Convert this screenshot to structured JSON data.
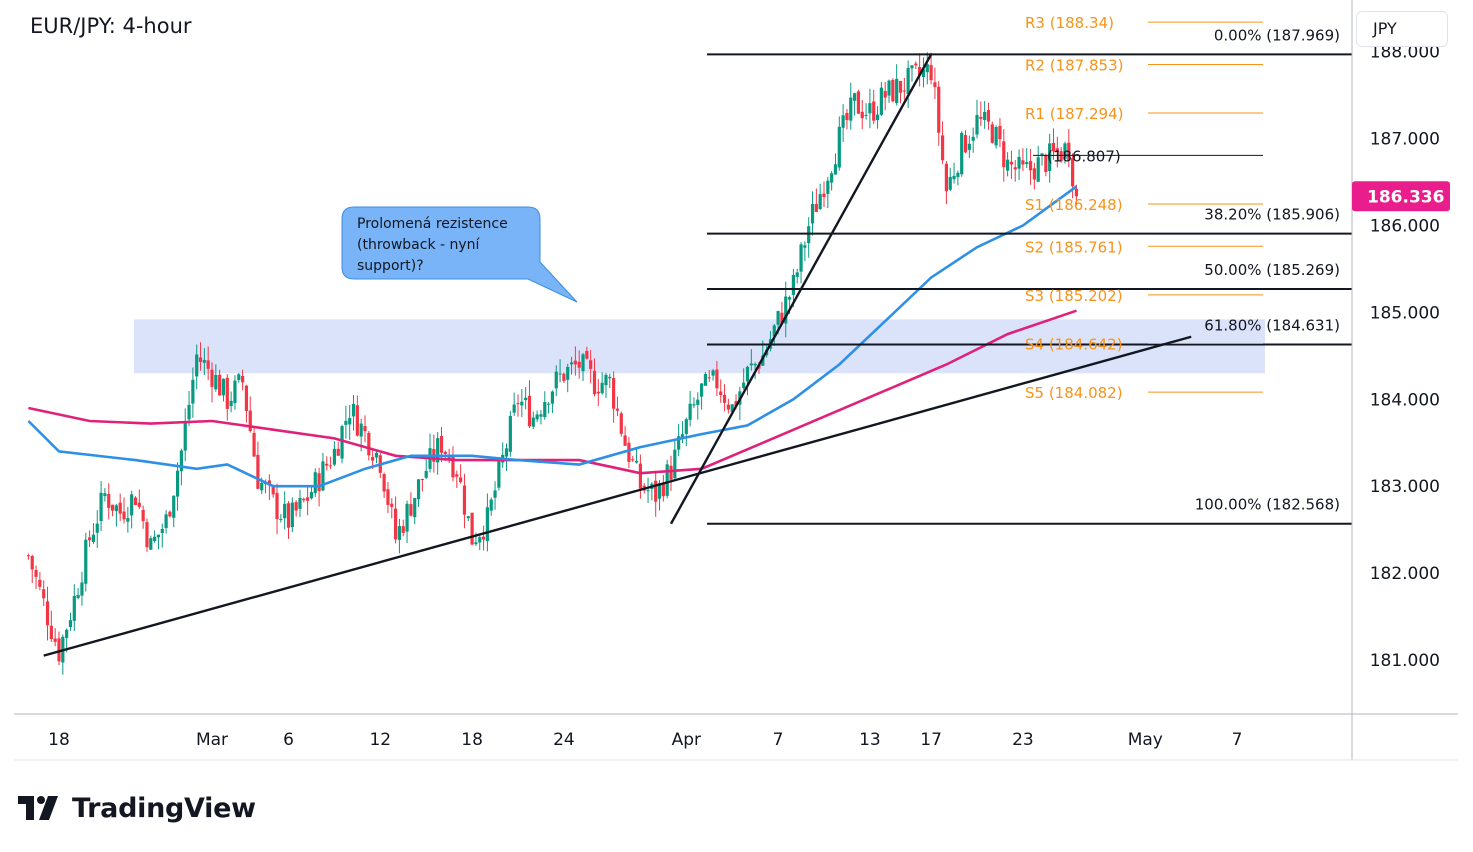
{
  "header": {
    "title": "EUR/JPY: 4-hour",
    "currency": "JPY"
  },
  "brand": {
    "name": "TradingView",
    "logo": "tradingview-logo-icon"
  },
  "annotation": {
    "text_lines": [
      "Prolomená rezistence",
      "(throwback - nyní",
      "support)?"
    ],
    "color": "#78b4f7"
  },
  "colors": {
    "up_candle": "#089981",
    "down_candle": "#f23645",
    "sma_fast": "#2e8fe6",
    "sma_slow": "#e0217a",
    "pivot": "#f7931a",
    "last_price_bg": "#e91e8c",
    "zone": "#dbe3fb",
    "line": "#131722"
  },
  "chart_data": {
    "type": "candlestick",
    "title": "EUR/JPY: 4-hour",
    "symbol": "EUR/JPY",
    "timeframe": "4-hour",
    "ylim": [
      180.4,
      188.5
    ],
    "y_ticks": [
      {
        "value": 181,
        "label": "181.000"
      },
      {
        "value": 182,
        "label": "182.000"
      },
      {
        "value": 183,
        "label": "183.000"
      },
      {
        "value": 184,
        "label": "184.000"
      },
      {
        "value": 185,
        "label": "185.000"
      },
      {
        "value": 186,
        "label": "186.000"
      },
      {
        "value": 187,
        "label": "187.000"
      },
      {
        "value": 188,
        "label": "188.000"
      }
    ],
    "x_ticks": [
      {
        "day": 0,
        "label": "18"
      },
      {
        "day": 10,
        "label": "Mar"
      },
      {
        "day": 15,
        "label": "6"
      },
      {
        "day": 21,
        "label": "12"
      },
      {
        "day": 27,
        "label": "18"
      },
      {
        "day": 33,
        "label": "24"
      },
      {
        "day": 41,
        "label": "Apr"
      },
      {
        "day": 47,
        "label": "7"
      },
      {
        "day": 53,
        "label": "13"
      },
      {
        "day": 57,
        "label": "17"
      },
      {
        "day": 63,
        "label": "23"
      },
      {
        "day": 71,
        "label": "May"
      },
      {
        "day": 77,
        "label": "7"
      }
    ],
    "last_price": {
      "value": 186.336,
      "label": "186.336"
    },
    "resistance_zone": {
      "from": 184.3,
      "to": 184.92
    },
    "fibonacci": [
      {
        "level": 187.969,
        "label": "0.00% (187.969)"
      },
      {
        "level": 185.906,
        "label": "38.20% (185.906)"
      },
      {
        "level": 185.269,
        "label": "50.00% (185.269)"
      },
      {
        "level": 184.631,
        "label": "61.80% (184.631)"
      },
      {
        "level": 182.568,
        "label": "100.00% (182.568)"
      }
    ],
    "pivots": [
      {
        "level": 188.34,
        "label": "R3 (188.34)"
      },
      {
        "level": 187.853,
        "label": "R2 (187.853)"
      },
      {
        "level": 187.294,
        "label": "R1 (187.294)"
      },
      {
        "level": 186.807,
        "label": "(186.807)"
      },
      {
        "level": 186.248,
        "label": "S1 (186.248)"
      },
      {
        "level": 185.761,
        "label": "S2 (185.761)"
      },
      {
        "level": 185.202,
        "label": "S3 (185.202)"
      },
      {
        "level": 184.642,
        "label": "S4 (184.642)"
      },
      {
        "level": 184.082,
        "label": "S5 (184.082)"
      }
    ],
    "trendlines": [
      {
        "name": "support-trendline",
        "from": {
          "day": -1,
          "price": 181.05
        },
        "to": {
          "day": 74,
          "price": 184.72
        }
      },
      {
        "name": "impulse-line",
        "from": {
          "day": 40,
          "price": 182.568
        },
        "to": {
          "day": 57,
          "price": 187.969
        }
      }
    ],
    "series": [
      {
        "name": "close",
        "points": [
          {
            "day": -2,
            "price": 182.2
          },
          {
            "day": 0,
            "price": 181.1
          },
          {
            "day": 1,
            "price": 181.7
          },
          {
            "day": 2,
            "price": 182.4
          },
          {
            "day": 3,
            "price": 182.9
          },
          {
            "day": 4,
            "price": 182.7
          },
          {
            "day": 5,
            "price": 182.9
          },
          {
            "day": 6,
            "price": 182.3
          },
          {
            "day": 7,
            "price": 182.6
          },
          {
            "day": 8,
            "price": 183.4
          },
          {
            "day": 9,
            "price": 184.5
          },
          {
            "day": 10,
            "price": 184.3
          },
          {
            "day": 11,
            "price": 184.0
          },
          {
            "day": 12,
            "price": 184.2
          },
          {
            "day": 13,
            "price": 183.1
          },
          {
            "day": 14,
            "price": 182.8
          },
          {
            "day": 15,
            "price": 182.6
          },
          {
            "day": 16,
            "price": 182.8
          },
          {
            "day": 17,
            "price": 183.1
          },
          {
            "day": 18,
            "price": 183.4
          },
          {
            "day": 19,
            "price": 183.9
          },
          {
            "day": 20,
            "price": 183.6
          },
          {
            "day": 21,
            "price": 183.3
          },
          {
            "day": 22,
            "price": 182.4
          },
          {
            "day": 23,
            "price": 182.8
          },
          {
            "day": 24,
            "price": 183.2
          },
          {
            "day": 25,
            "price": 183.5
          },
          {
            "day": 26,
            "price": 183.2
          },
          {
            "day": 27,
            "price": 182.4
          },
          {
            "day": 28,
            "price": 182.6
          },
          {
            "day": 29,
            "price": 183.3
          },
          {
            "day": 30,
            "price": 184.0
          },
          {
            "day": 31,
            "price": 183.8
          },
          {
            "day": 32,
            "price": 184.1
          },
          {
            "day": 33,
            "price": 184.3
          },
          {
            "day": 34,
            "price": 184.4
          },
          {
            "day": 35,
            "price": 184.2
          },
          {
            "day": 36,
            "price": 184.2
          },
          {
            "day": 37,
            "price": 183.5
          },
          {
            "day": 38,
            "price": 183.0
          },
          {
            "day": 39,
            "price": 182.9
          },
          {
            "day": 40,
            "price": 183.2
          },
          {
            "day": 41,
            "price": 183.7
          },
          {
            "day": 42,
            "price": 184.1
          },
          {
            "day": 43,
            "price": 184.2
          },
          {
            "day": 44,
            "price": 183.9
          },
          {
            "day": 45,
            "price": 184.3
          },
          {
            "day": 46,
            "price": 184.5
          },
          {
            "day": 47,
            "price": 184.9
          },
          {
            "day": 48,
            "price": 185.3
          },
          {
            "day": 49,
            "price": 186.0
          },
          {
            "day": 50,
            "price": 186.5
          },
          {
            "day": 51,
            "price": 187.0
          },
          {
            "day": 52,
            "price": 187.4
          },
          {
            "day": 53,
            "price": 187.3
          },
          {
            "day": 54,
            "price": 187.5
          },
          {
            "day": 55,
            "price": 187.6
          },
          {
            "day": 56,
            "price": 187.7
          },
          {
            "day": 57,
            "price": 187.8
          },
          {
            "day": 58,
            "price": 186.4
          },
          {
            "day": 59,
            "price": 186.9
          },
          {
            "day": 60,
            "price": 187.2
          },
          {
            "day": 61,
            "price": 187.1
          },
          {
            "day": 62,
            "price": 186.7
          },
          {
            "day": 63,
            "price": 186.6
          },
          {
            "day": 64,
            "price": 186.7
          },
          {
            "day": 65,
            "price": 186.8
          },
          {
            "day": 66,
            "price": 186.9
          },
          {
            "day": 66.5,
            "price": 186.336
          }
        ]
      },
      {
        "name": "moving-average-fast",
        "points": [
          {
            "day": -2,
            "price": 183.75
          },
          {
            "day": 0,
            "price": 183.4
          },
          {
            "day": 5,
            "price": 183.3
          },
          {
            "day": 9,
            "price": 183.2
          },
          {
            "day": 11,
            "price": 183.25
          },
          {
            "day": 14,
            "price": 183.0
          },
          {
            "day": 17,
            "price": 183.0
          },
          {
            "day": 20,
            "price": 183.2
          },
          {
            "day": 23,
            "price": 183.35
          },
          {
            "day": 27,
            "price": 183.35
          },
          {
            "day": 30,
            "price": 183.3
          },
          {
            "day": 34,
            "price": 183.25
          },
          {
            "day": 38,
            "price": 183.45
          },
          {
            "day": 42,
            "price": 183.6
          },
          {
            "day": 45,
            "price": 183.7
          },
          {
            "day": 48,
            "price": 184.0
          },
          {
            "day": 51,
            "price": 184.4
          },
          {
            "day": 54,
            "price": 184.9
          },
          {
            "day": 57,
            "price": 185.4
          },
          {
            "day": 60,
            "price": 185.75
          },
          {
            "day": 63,
            "price": 186.0
          },
          {
            "day": 66.5,
            "price": 186.45
          }
        ]
      },
      {
        "name": "moving-average-slow",
        "points": [
          {
            "day": -2,
            "price": 183.9
          },
          {
            "day": 2,
            "price": 183.75
          },
          {
            "day": 6,
            "price": 183.72
          },
          {
            "day": 10,
            "price": 183.75
          },
          {
            "day": 14,
            "price": 183.65
          },
          {
            "day": 18,
            "price": 183.55
          },
          {
            "day": 22,
            "price": 183.35
          },
          {
            "day": 26,
            "price": 183.3
          },
          {
            "day": 30,
            "price": 183.3
          },
          {
            "day": 34,
            "price": 183.3
          },
          {
            "day": 38,
            "price": 183.15
          },
          {
            "day": 42,
            "price": 183.2
          },
          {
            "day": 46,
            "price": 183.5
          },
          {
            "day": 50,
            "price": 183.8
          },
          {
            "day": 54,
            "price": 184.1
          },
          {
            "day": 58,
            "price": 184.4
          },
          {
            "day": 62,
            "price": 184.75
          },
          {
            "day": 66.5,
            "price": 185.02
          }
        ]
      }
    ]
  }
}
